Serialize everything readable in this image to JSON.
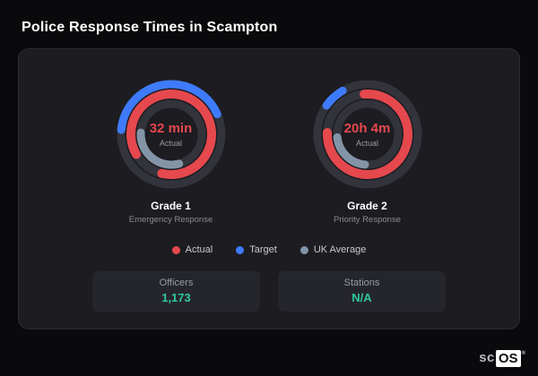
{
  "page": {
    "title": "Police Response Times in Scampton"
  },
  "chart_data": {
    "type": "radial-gauge",
    "track_color": "#32333b",
    "gauges": [
      {
        "value": "32 min",
        "value_label": "Actual",
        "grade": "Grade 1",
        "grade_sub": "Emergency Response",
        "rings": [
          {
            "name": "target",
            "color": "#3e7bfa",
            "frac": 0.42,
            "start": 185
          },
          {
            "name": "actual",
            "color": "#e5484d",
            "frac": 0.87,
            "start": 150
          },
          {
            "name": "uk_average",
            "color": "#8494a7",
            "frac": 0.3,
            "start": 75
          }
        ]
      },
      {
        "value": "20h 4m",
        "value_label": "Actual",
        "grade": "Grade 2",
        "grade_sub": "Priority Response",
        "rings": [
          {
            "name": "target",
            "color": "#3e7bfa",
            "frac": 0.07,
            "start": 215
          },
          {
            "name": "actual",
            "color": "#e5484d",
            "frac": 0.77,
            "start": 265
          },
          {
            "name": "uk_average",
            "color": "#8494a7",
            "frac": 0.22,
            "start": 95
          }
        ]
      }
    ],
    "legend": [
      {
        "label": "Actual",
        "color": "#e5484d"
      },
      {
        "label": "Target",
        "color": "#3e7bfa"
      },
      {
        "label": "UK Average",
        "color": "#8494a7"
      }
    ]
  },
  "stats": [
    {
      "label": "Officers",
      "value": "1,173"
    },
    {
      "label": "Stations",
      "value": "N/A"
    }
  ],
  "logo": {
    "prefix": "sc",
    "suffix": "OS",
    "reg": "®"
  }
}
